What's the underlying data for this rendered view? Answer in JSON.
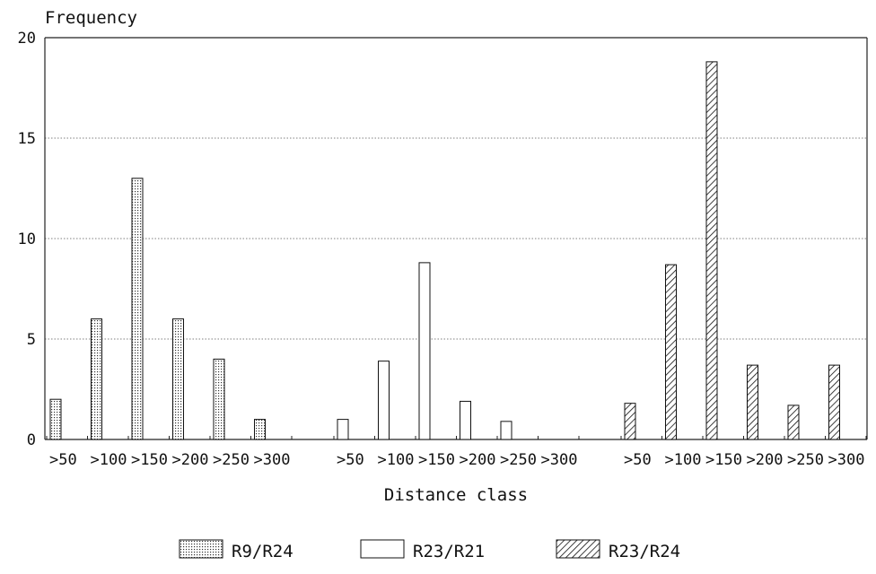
{
  "chart_data": {
    "type": "bar",
    "ylabel": "Frequency",
    "xlabel": "Distance class",
    "ylim": [
      0,
      20
    ],
    "yticks": [
      0,
      5,
      10,
      15,
      20
    ],
    "grid": true,
    "legend_position": "bottom",
    "groups": [
      {
        "series": "R9/R24",
        "pattern": "dots",
        "categories": [
          ">50",
          ">100",
          ">150",
          ">200",
          ">250",
          ">300"
        ],
        "values": [
          2,
          6,
          13,
          6,
          4,
          1
        ]
      },
      {
        "series": "R23/R21",
        "pattern": "plain",
        "categories": [
          ">50",
          ">100",
          ">150",
          ">200",
          ">250",
          ">300"
        ],
        "values": [
          1,
          3.9,
          8.8,
          1.9,
          0.9,
          0
        ]
      },
      {
        "series": "R23/R24",
        "pattern": "hatch",
        "categories": [
          ">50",
          ">100",
          ">150",
          ">200",
          ">250",
          ">300"
        ],
        "values": [
          1.8,
          8.7,
          18.8,
          3.7,
          1.7,
          3.7
        ]
      }
    ],
    "legend": [
      "R9/R24",
      "R23/R21",
      "R23/R24"
    ]
  }
}
